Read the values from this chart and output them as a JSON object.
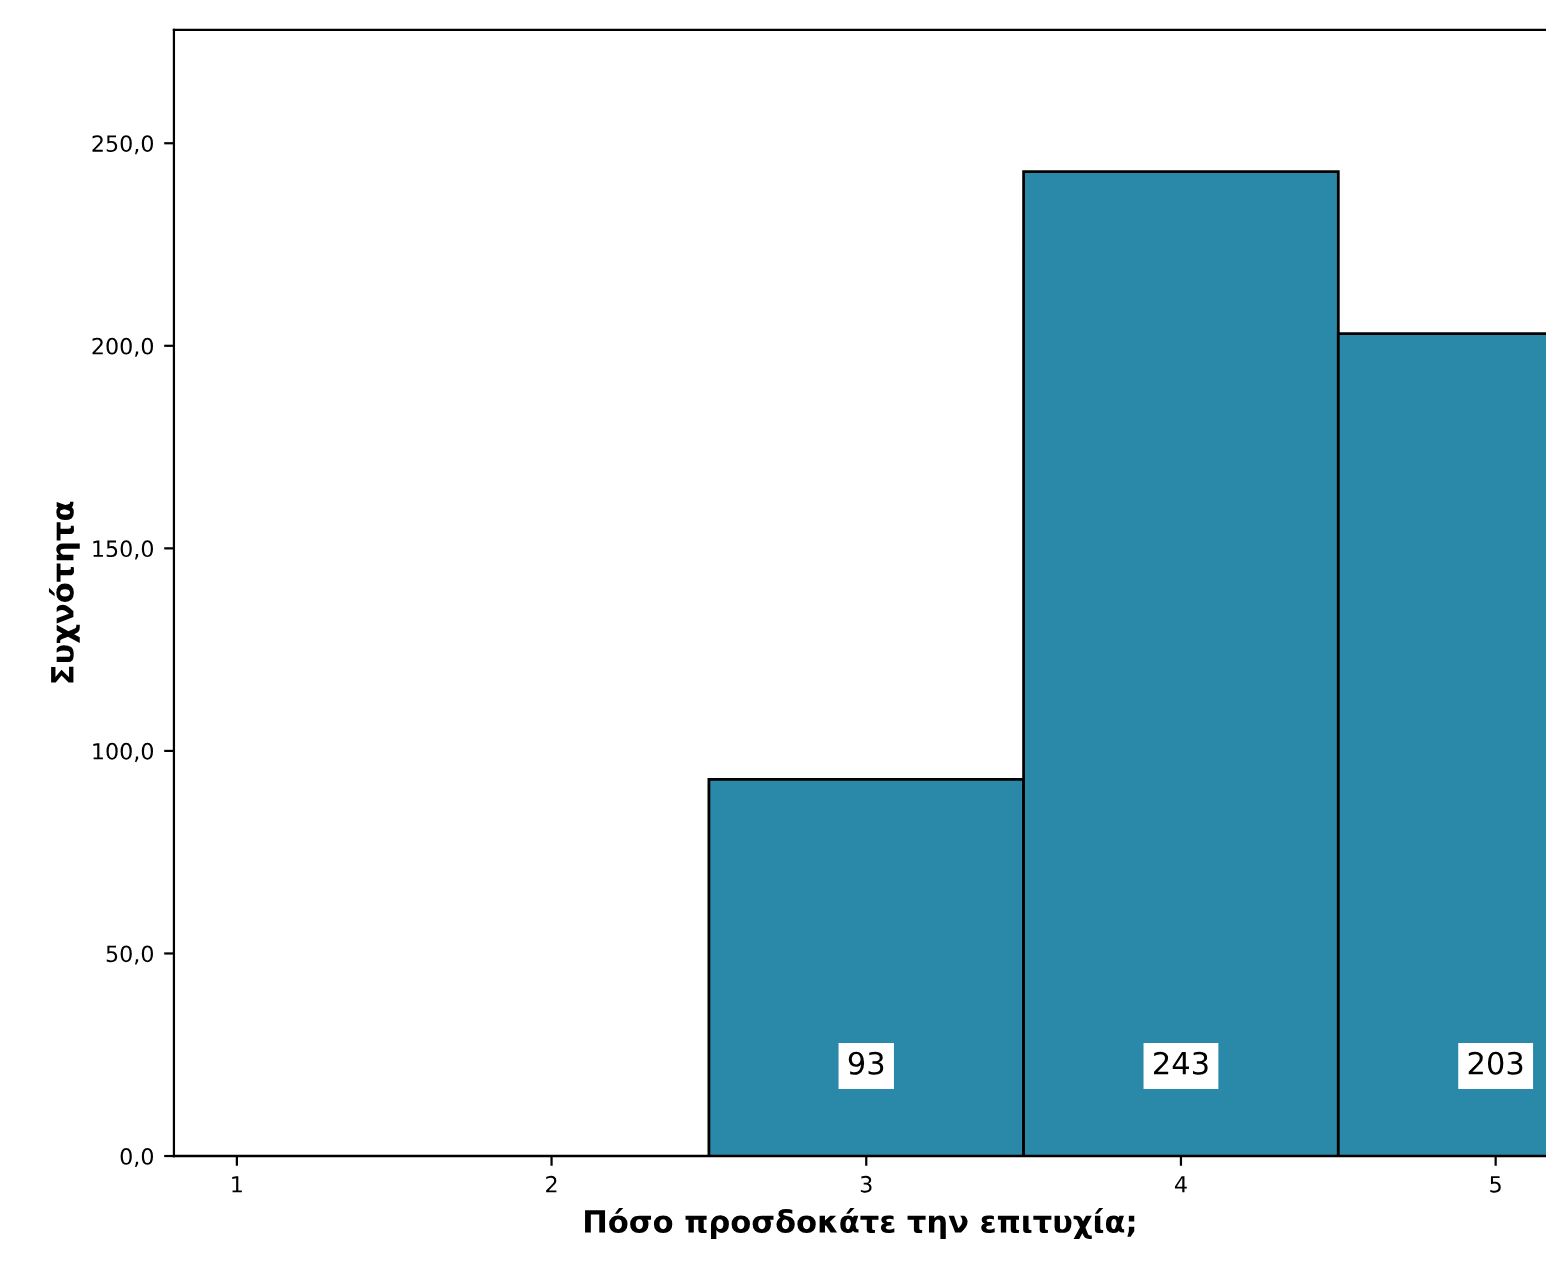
{
  "chart_data": {
    "type": "bar",
    "xlabel": "Πόσο προσδοκάτε την επιτυχία;",
    "ylabel": "Συχνότητα",
    "categories": [
      "1",
      "2",
      "3",
      "4",
      "5"
    ],
    "values": [
      0,
      0,
      93,
      243,
      203
    ],
    "color": "#2a89a8",
    "value_labels": [
      null,
      null,
      "93",
      "243",
      "203"
    ],
    "ylim": [
      0,
      278
    ],
    "yticks": [
      {
        "value": 0,
        "label": "0,0"
      },
      {
        "value": 50,
        "label": "50,0"
      },
      {
        "value": 100,
        "label": "100,0"
      },
      {
        "value": 150,
        "label": "150,0"
      },
      {
        "value": 200,
        "label": "200,0"
      },
      {
        "value": 250,
        "label": "250,0"
      }
    ],
    "grid": false,
    "legend": false
  }
}
